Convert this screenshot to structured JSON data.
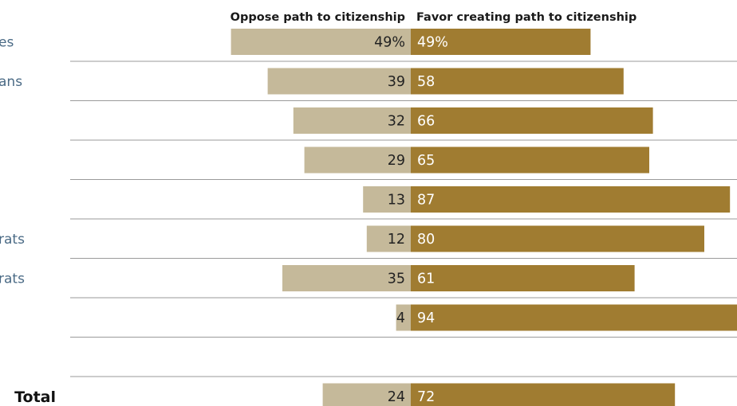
{
  "chart_data": {
    "type": "bar",
    "orientation": "horizontal-diverging",
    "header_oppose": "Oppose path to citizenship",
    "header_favor": "Favor creating path to citizenship",
    "rows": [
      {
        "label": "es",
        "oppose": 49,
        "favor": 49,
        "oppose_text": "49%",
        "favor_text": "49%"
      },
      {
        "label": "ans",
        "oppose": 39,
        "favor": 58,
        "oppose_text": "39",
        "favor_text": "58"
      },
      {
        "label": "",
        "oppose": 32,
        "favor": 66,
        "oppose_text": "32",
        "favor_text": "66"
      },
      {
        "label": "",
        "oppose": 29,
        "favor": 65,
        "oppose_text": "29",
        "favor_text": "65"
      },
      {
        "label": "",
        "oppose": 13,
        "favor": 87,
        "oppose_text": "13",
        "favor_text": "87"
      },
      {
        "label": "rats",
        "oppose": 12,
        "favor": 80,
        "oppose_text": "12",
        "favor_text": "80"
      },
      {
        "label": "rats",
        "oppose": 35,
        "favor": 61,
        "oppose_text": "35",
        "favor_text": "61"
      },
      {
        "label": "",
        "oppose": 4,
        "favor": 94,
        "oppose_text": "4",
        "favor_text": "94"
      },
      {
        "label": "",
        "oppose": null,
        "favor": null,
        "oppose_text": "",
        "favor_text": ""
      },
      {
        "label": "Total",
        "oppose": 24,
        "favor": 72,
        "oppose_text": "24",
        "favor_text": "72",
        "is_total": true
      }
    ],
    "colors": {
      "oppose": "#c5b99a",
      "favor": "#a07c31",
      "separator": "#9a9a9a"
    }
  }
}
